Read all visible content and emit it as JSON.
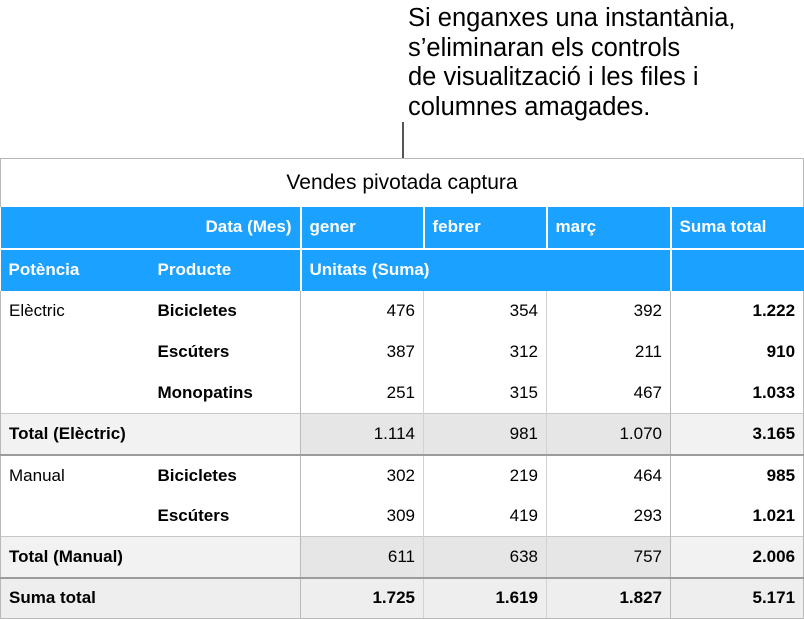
{
  "callout": {
    "lines": [
      "Si enganxes una instantània,",
      "s’eliminaran els controls",
      "de visualització i les files i",
      "columnes amagades."
    ]
  },
  "table": {
    "title": "Vendes pivotada captura",
    "header": {
      "column_field": "Data (Mes)",
      "months": [
        "gener",
        "febrer",
        "març"
      ],
      "grand_total": "Suma total",
      "row_field_1": "Potència",
      "row_field_2": "Producte",
      "value_field": "Unitats (Suma)"
    },
    "groups": [
      {
        "name": "Elèctric",
        "rows": [
          {
            "product": "Bicicletes",
            "values": [
              "476",
              "354",
              "392"
            ],
            "total": "1.222"
          },
          {
            "product": "Escúters",
            "values": [
              "387",
              "312",
              "211"
            ],
            "total": "910"
          },
          {
            "product": "Monopatins",
            "values": [
              "251",
              "315",
              "467"
            ],
            "total": "1.033"
          }
        ],
        "subtotal": {
          "label": "Total (Elèctric)",
          "values": [
            "1.114",
            "981",
            "1.070"
          ],
          "total": "3.165"
        }
      },
      {
        "name": "Manual",
        "rows": [
          {
            "product": "Bicicletes",
            "values": [
              "302",
              "219",
              "464"
            ],
            "total": "985"
          },
          {
            "product": "Escúters",
            "values": [
              "309",
              "419",
              "293"
            ],
            "total": "1.021"
          }
        ],
        "subtotal": {
          "label": "Total (Manual)",
          "values": [
            "611",
            "638",
            "757"
          ],
          "total": "2.006"
        }
      }
    ],
    "grand_total": {
      "label": "Suma total",
      "values": [
        "1.725",
        "1.619",
        "1.827"
      ],
      "total": "5.171"
    }
  },
  "colors": {
    "header_blue": "#1ba1ff",
    "subtotal_gray": "#f2f2f2",
    "grid_line": "#b9b9b9"
  }
}
